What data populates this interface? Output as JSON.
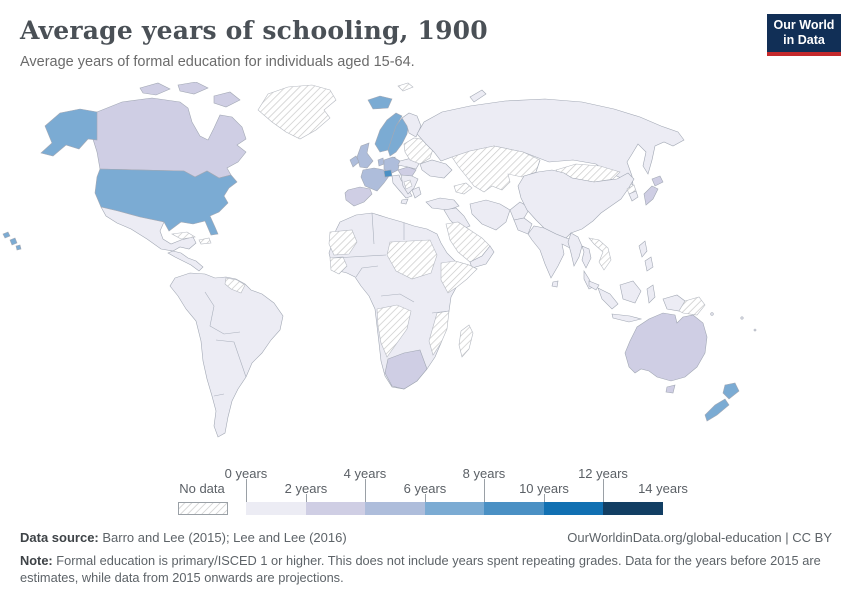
{
  "header": {
    "title": "Average years of schooling, 1900",
    "subtitle": "Average years of formal education for individuals aged 15-64.",
    "logo": {
      "line1": "Our World",
      "line2": "in Data",
      "bg_color": "#112f56",
      "accent_color": "#c5292c"
    }
  },
  "legend": {
    "no_data_label": "No data",
    "labels": [
      "0 years",
      "2 years",
      "4 years",
      "6 years",
      "8 years",
      "10 years",
      "12 years",
      "14 years"
    ]
  },
  "map": {
    "bucket_colors": [
      "#ececf4",
      "#cfcee4",
      "#aebddb",
      "#7babd3",
      "#4a90c4",
      "#1170b2",
      "#123e63"
    ],
    "no_data_pattern_color": "#c9c9c9",
    "border_color": "#a2a8b4",
    "region_values": {
      "greenland": "no-data",
      "arctic-islands": 1,
      "canada": 1,
      "alaska": 3,
      "usa": 3,
      "hawaii": 3,
      "mexico": 0,
      "central-america": 0,
      "cuba": "no-data",
      "hispaniola": "no-data",
      "south-america": 0,
      "guianas": "no-data",
      "iceland": 3,
      "norway": 3,
      "sweden": 3,
      "finland": 0,
      "denmark": 2,
      "uk": 2,
      "ireland": 2,
      "france": 2,
      "spain-portugal": 1,
      "germany": 2,
      "benelux": 2,
      "switzerland": 4,
      "italy": 0,
      "austria-hungary": 1,
      "poland": 0,
      "balkans": 0,
      "greece": 0,
      "balkans-patch": "no-data",
      "baltics-belarus": "no-data",
      "ukraine": 0,
      "russia": 0,
      "novaya-zemlya": 0,
      "svalbard": "no-data",
      "central-asia": "no-data",
      "caucasus": "no-data",
      "mongolia": "no-data",
      "turkey": 0,
      "iraq-syria": 0,
      "iran": 0,
      "afghanistan": 0,
      "pakistan": 0,
      "saudi-arabia": "no-data",
      "yemen-oman": 0,
      "india": 0,
      "sri-lanka": 0,
      "china": 0,
      "north-korea": "no-data",
      "south-korea": 0,
      "japan": 1,
      "myanmar": 0,
      "thailand": 0,
      "vietnam-laos": "no-data",
      "malaysia": 0,
      "sumatra": 0,
      "java": 0,
      "borneo": 0,
      "sulawesi": 0,
      "philippines": 0,
      "new-guinea-west": 0,
      "png-east": "no-data",
      "australia": 1,
      "tasmania": 1,
      "new-zealand": 3,
      "africa": 0,
      "w-sahara-mauritania": "no-data",
      "guinea": "no-data",
      "chad-sudan": "no-data",
      "horn-of-africa": "no-data",
      "angola-namibia": "no-data",
      "mozambique": "no-data",
      "madagascar": "no-data",
      "south-africa": 1,
      "pacific-islands": 0
    }
  },
  "footer": {
    "source_label": "Data source:",
    "source_text": " Barro and Lee (2015); Lee and Lee (2016)",
    "link_text": "OurWorldinData.org/global-education | CC BY",
    "note_label": "Note:",
    "note_text": " Formal education is primary/ISCED 1 or higher. This does not include years spent repeating grades. Data for the years before 2015 are estimates, while data from 2015 onwards are projections."
  },
  "chart_data": {
    "type": "choropleth_map",
    "title": "Average years of schooling, 1900",
    "subtitle": "Average years of formal education for individuals aged 15-64.",
    "unit": "years",
    "legend_position": "bottom",
    "scale_bins": [
      {
        "range": "0-2 years",
        "color": "#ececf4"
      },
      {
        "range": "2-4 years",
        "color": "#cfcee4"
      },
      {
        "range": "4-6 years",
        "color": "#aebddb"
      },
      {
        "range": "6-8 years",
        "color": "#7babd3"
      },
      {
        "range": "8-10 years",
        "color": "#4a90c4"
      },
      {
        "range": "10-12 years",
        "color": "#1170b2"
      },
      {
        "range": "12-14 years",
        "color": "#123e63"
      }
    ],
    "no_data": {
      "label": "No data",
      "pattern": "diagonal-hatch"
    },
    "regions_by_color": {
      "United States": "6-8",
      "Canada": "2-4",
      "Mexico": "0-2",
      "Central America": "0-2",
      "Cuba": "no data",
      "Hispaniola": "no data",
      "Greenland": "no data",
      "South America": "0-2",
      "Guianas": "no data",
      "Iceland": "6-8",
      "Norway": "6-8",
      "Sweden": "6-8",
      "Finland": "0-2",
      "Denmark": "4-6",
      "United Kingdom": "4-6",
      "Ireland": "4-6",
      "France": "4-6",
      "Germany": "4-6",
      "Benelux": "4-6",
      "Switzerland": "8-10",
      "Spain & Portugal": "2-4",
      "Italy": "0-2",
      "Austria-Hungary": "2-4",
      "Poland": "0-2",
      "Balkans": "0-2",
      "Baltics & Belarus": "no data",
      "Ukraine": "0-2",
      "Russia": "0-2",
      "Central Asia": "no data",
      "Caucasus": "no data",
      "Mongolia": "no data",
      "China": "0-2",
      "North Korea": "no data",
      "South Korea": "0-2",
      "Japan": "2-4",
      "India": "0-2",
      "Pakistan": "0-2",
      "Afghanistan": "0-2",
      "Iran": "0-2",
      "Turkey": "0-2",
      "Iraq & Syria": "0-2",
      "Saudi Arabia": "no data",
      "Yemen & Oman": "0-2",
      "North Africa": "0-2",
      "Western Sahara & Mauritania": "no data",
      "Guinea": "no data",
      "Chad & Sudan": "no data",
      "Horn of Africa": "no data",
      "Angola & Namibia": "no data",
      "Mozambique": "no data",
      "Madagascar": "no data",
      "South Africa": "2-4",
      "Sub-Saharan Africa": "0-2",
      "Myanmar": "0-2",
      "Thailand": "0-2",
      "Vietnam & Laos": "no data",
      "Malaysia": "0-2",
      "Indonesia": "0-2",
      "Philippines": "0-2",
      "Papua New Guinea": "no data",
      "Australia": "2-4",
      "New Zealand": "6-8"
    }
  }
}
